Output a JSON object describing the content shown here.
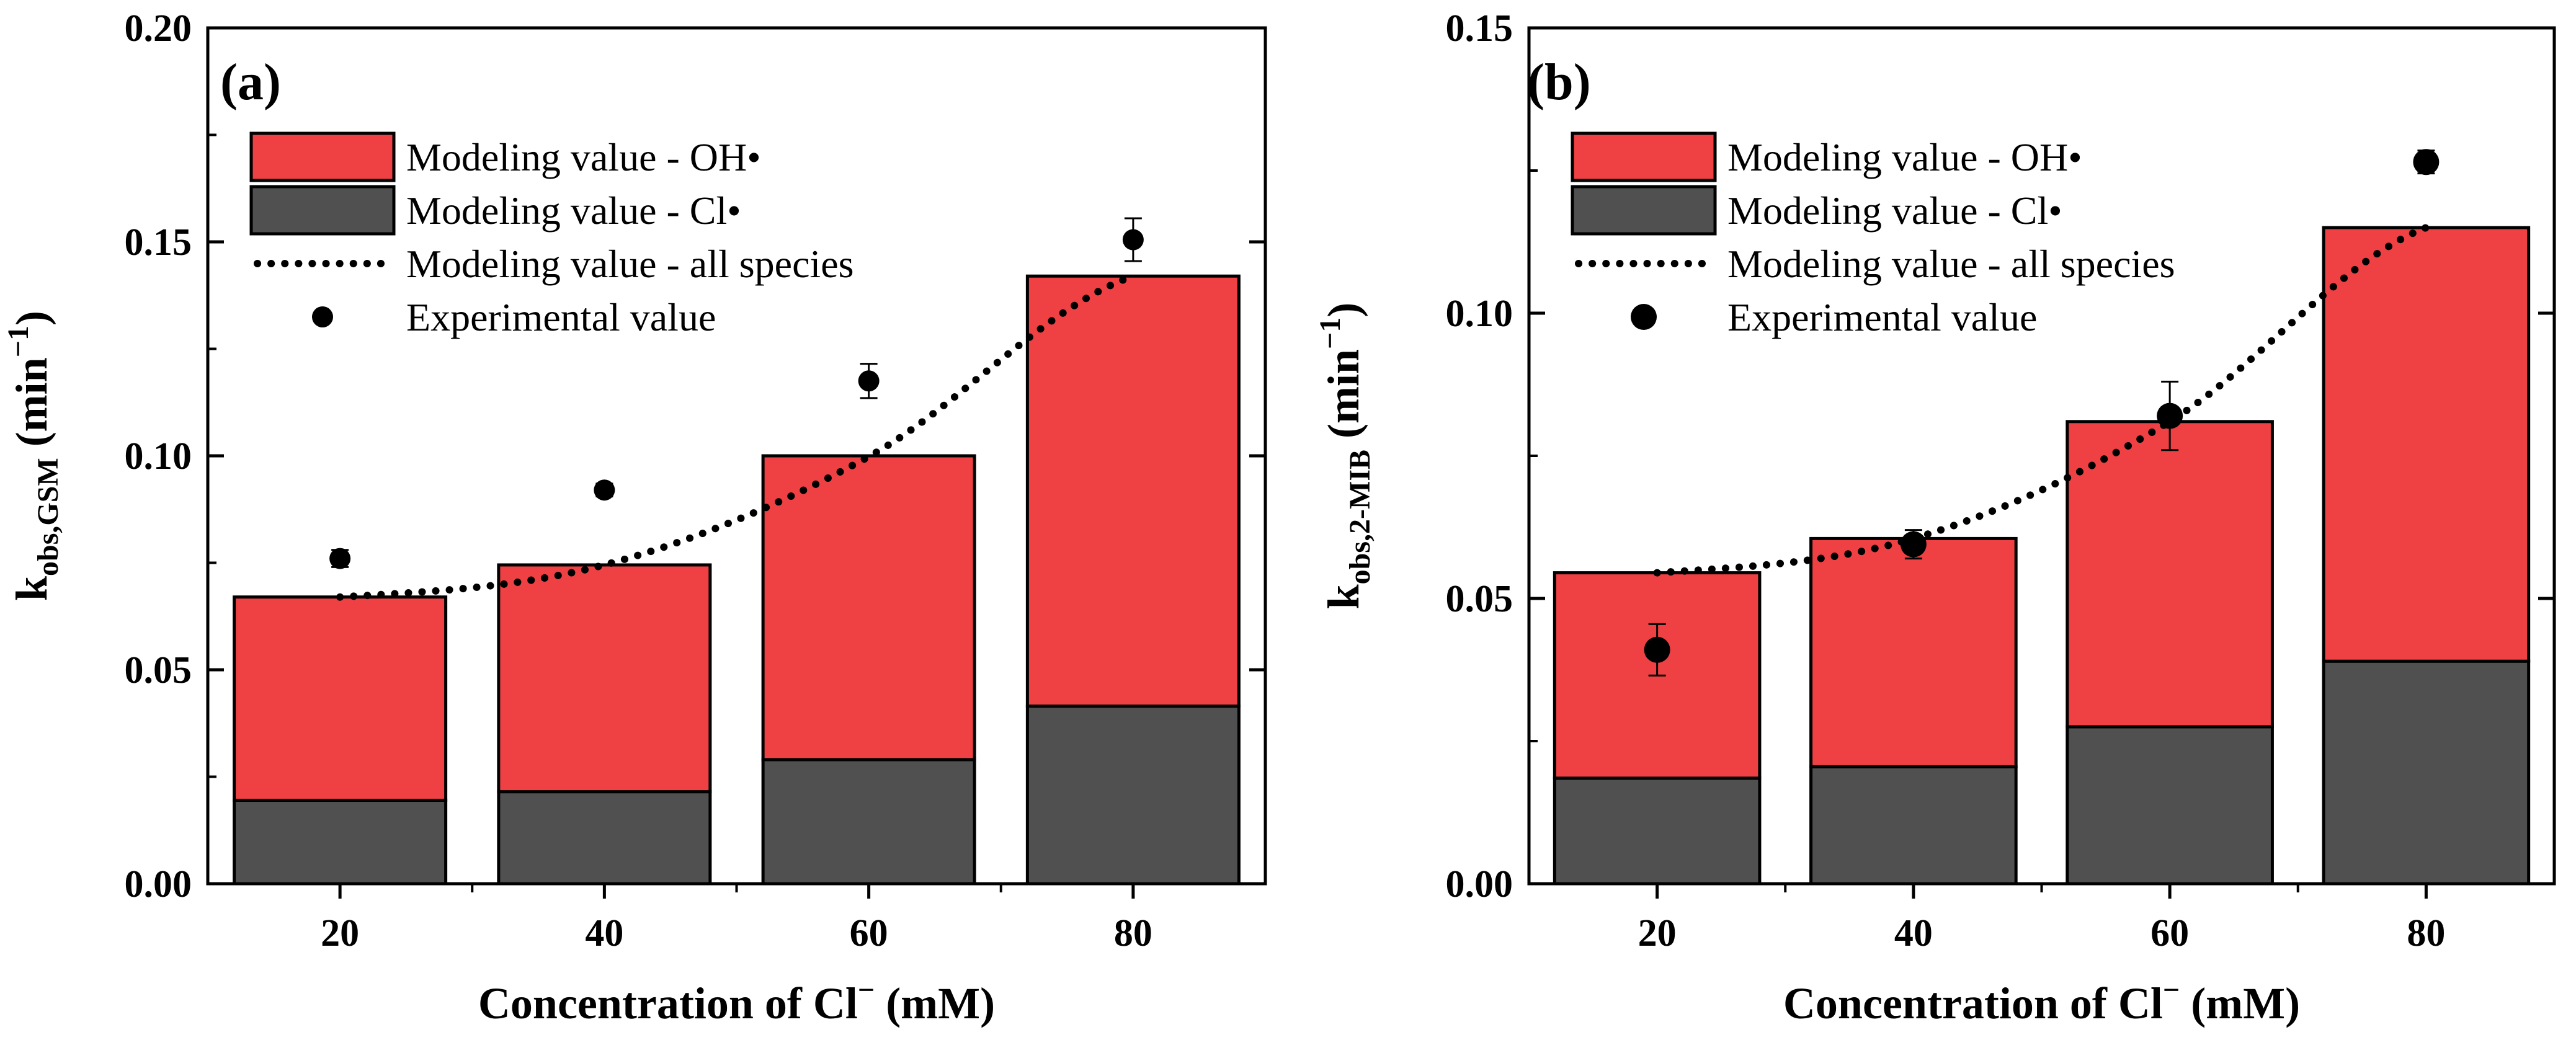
{
  "chart_data": [
    {
      "type": "bar",
      "panel_label": "(a)",
      "categories": [
        "20",
        "40",
        "60",
        "80"
      ],
      "series": [
        {
          "name": "Modeling value - Cl•",
          "color": "#505050",
          "values": [
            0.0195,
            0.0215,
            0.029,
            0.0415
          ]
        },
        {
          "name": "Modeling value - OH•",
          "color": "#ef4143",
          "values": [
            0.0475,
            0.053,
            0.071,
            0.1005
          ]
        }
      ],
      "line": {
        "name": "Modeling value - all species",
        "style": "dotted",
        "values": [
          0.067,
          0.0745,
          0.0998,
          0.142
        ]
      },
      "experimental": {
        "name": "Experimental value",
        "values": [
          0.076,
          0.092,
          0.1175,
          0.1505
        ],
        "errors": [
          0.002,
          0.0015,
          0.004,
          0.005
        ]
      },
      "ylim": [
        0,
        0.2
      ],
      "yticks": [
        "0.00",
        "0.05",
        "0.10",
        "0.15",
        "0.20"
      ],
      "xlabel": {
        "main": "Concentration of Cl",
        "sup": "−",
        "after": " (mM)"
      },
      "ylabel": {
        "main": "k",
        "sub": "obs,GSM",
        "after": " (min",
        "sup": "−1",
        "close": ")"
      },
      "legend_order": [
        "Modeling value - OH•",
        "Modeling value - Cl•",
        "Modeling value - all species",
        "Experimental value"
      ]
    },
    {
      "type": "bar",
      "panel_label": "(b)",
      "categories": [
        "20",
        "40",
        "60",
        "80"
      ],
      "series": [
        {
          "name": "Modeling value - Cl•",
          "color": "#505050",
          "values": [
            0.0185,
            0.0205,
            0.0275,
            0.039
          ]
        },
        {
          "name": "Modeling value - OH•",
          "color": "#ef4143",
          "values": [
            0.036,
            0.04,
            0.0535,
            0.076
          ]
        }
      ],
      "line": {
        "name": "Modeling value - all species",
        "style": "dotted",
        "values": [
          0.0545,
          0.0605,
          0.081,
          0.115
        ]
      },
      "experimental": {
        "name": "Experimental value",
        "values": [
          0.041,
          0.0595,
          0.082,
          0.1265
        ],
        "errors": [
          0.0045,
          0.0025,
          0.006,
          0.002
        ]
      },
      "ylim": [
        0,
        0.15
      ],
      "yticks": [
        "0.00",
        "0.05",
        "0.10",
        "0.15"
      ],
      "xlabel": {
        "main": "Concentration of Cl",
        "sup": "−",
        "after": " (mM)"
      },
      "ylabel": {
        "main": "k",
        "sub": "obs,2-MIB",
        "after": " (min",
        "sup": "−1",
        "close": ")"
      },
      "legend_order": [
        "Modeling value - OH•",
        "Modeling value - Cl•",
        "Modeling value - all species",
        "Experimental value"
      ]
    }
  ]
}
